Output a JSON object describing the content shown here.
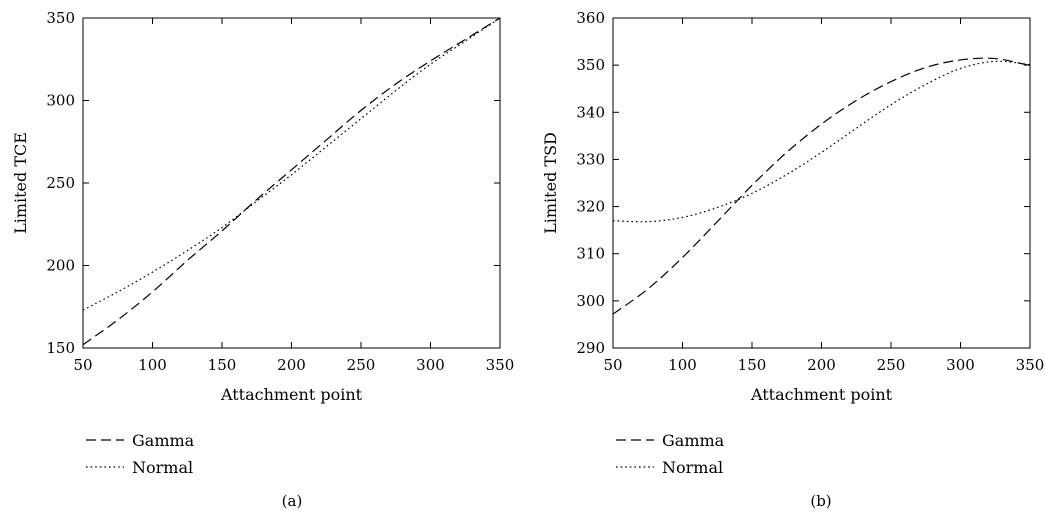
{
  "chart_data": [
    {
      "type": "line",
      "panel_label": "(a)",
      "xlabel": "Attachment point",
      "ylabel": "Limited TCE",
      "xlim": [
        50,
        350
      ],
      "ylim": [
        150,
        350
      ],
      "xticks": [
        50,
        100,
        150,
        200,
        250,
        300,
        350
      ],
      "yticks": [
        150,
        200,
        250,
        300,
        350
      ],
      "grid": false,
      "legend_position": "below-left",
      "series": [
        {
          "name": "Gamma",
          "line_style": "dashed",
          "color": "#000000",
          "x": [
            50,
            75,
            100,
            125,
            150,
            175,
            200,
            225,
            250,
            275,
            300,
            325,
            350
          ],
          "y": [
            152,
            167,
            184,
            203,
            221,
            240,
            258,
            276,
            294,
            310,
            324,
            337,
            350
          ]
        },
        {
          "name": "Normal",
          "line_style": "dotted",
          "color": "#000000",
          "x": [
            50,
            75,
            100,
            125,
            150,
            175,
            200,
            225,
            250,
            275,
            300,
            325,
            350
          ],
          "y": [
            173,
            184,
            196,
            209,
            223,
            239,
            255,
            272,
            289,
            306,
            322,
            336,
            350
          ]
        }
      ]
    },
    {
      "type": "line",
      "panel_label": "(b)",
      "xlabel": "Attachment point",
      "ylabel": "Limited TSD",
      "xlim": [
        50,
        350
      ],
      "ylim": [
        290,
        360
      ],
      "xticks": [
        50,
        100,
        150,
        200,
        250,
        300,
        350
      ],
      "yticks": [
        290,
        300,
        310,
        320,
        330,
        340,
        350,
        360
      ],
      "grid": false,
      "legend_position": "below-left",
      "series": [
        {
          "name": "Gamma",
          "line_style": "dashed",
          "color": "#000000",
          "x": [
            50,
            75,
            100,
            125,
            150,
            175,
            200,
            225,
            250,
            275,
            300,
            325,
            350
          ],
          "y": [
            297.2,
            302.5,
            309.2,
            316.8,
            324.5,
            331.5,
            337.5,
            342.5,
            346.5,
            349.5,
            351.1,
            351.4,
            349.9
          ]
        },
        {
          "name": "Normal",
          "line_style": "dotted",
          "color": "#000000",
          "x": [
            50,
            75,
            100,
            125,
            150,
            175,
            200,
            225,
            250,
            275,
            300,
            325,
            350
          ],
          "y": [
            317.0,
            316.8,
            317.7,
            319.8,
            322.8,
            326.8,
            331.5,
            336.6,
            341.6,
            345.9,
            349.3,
            350.8,
            350.1
          ]
        }
      ]
    }
  ]
}
